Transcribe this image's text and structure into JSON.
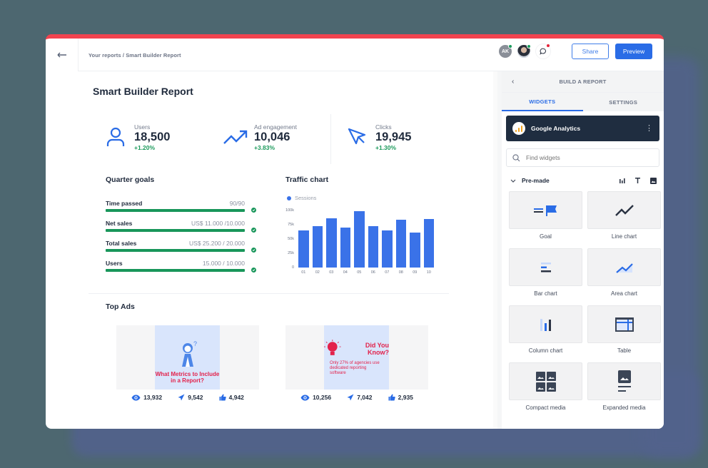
{
  "topbar": {
    "back_icon": "arrow-left-icon",
    "breadcrumb": "Your reports / Smart Builder Report",
    "avatars": [
      {
        "initials": "AK",
        "status_color": "#1b9a5b"
      },
      {
        "initials": "",
        "status_color": "#1b9a5b"
      }
    ],
    "chat_icon": "chat-bubble-icon",
    "share_label": "Share",
    "preview_label": "Preview"
  },
  "report": {
    "title": "Smart Builder Report",
    "kpis": [
      {
        "icon": "user-icon",
        "label": "Users",
        "value": "18,500",
        "delta": "+1.20%"
      },
      {
        "icon": "trending-up-icon",
        "label": "Ad engagement",
        "value": "10,046",
        "delta": "+3.83%"
      },
      {
        "icon": "cursor-icon",
        "label": "Clicks",
        "value": "19,945",
        "delta": "+1.30%"
      }
    ],
    "quarter_goals": {
      "title": "Quarter goals",
      "items": [
        {
          "label": "Time passed",
          "value": "90/90"
        },
        {
          "label": "Net sales",
          "value": "US$ 11.000 /10.000"
        },
        {
          "label": "Total sales",
          "value": "US$ 25.200 / 20.000"
        },
        {
          "label": "Users",
          "value": "15.000 / 10.000"
        }
      ]
    },
    "traffic_chart": {
      "title": "Traffic chart",
      "legend": "Sessions",
      "y_ticks": [
        "100k",
        "75k",
        "50k",
        "25k",
        "0"
      ],
      "categories": [
        "01",
        "02",
        "03",
        "04",
        "05",
        "06",
        "07",
        "08",
        "09",
        "10"
      ],
      "values": [
        65,
        72,
        86,
        70,
        99,
        72,
        65,
        84,
        61,
        85
      ],
      "color": "#3a72e8"
    },
    "top_ads": {
      "title": "Top Ads",
      "ads": [
        {
          "creative_text": "What Metrics to Include in a Report?",
          "views": "13,932",
          "clicks": "9,542",
          "likes": "4,942"
        },
        {
          "creative_title": "Did You Know?",
          "creative_text": "Only 27% of agencies use dedicated reporting software",
          "views": "10,256",
          "clicks": "7,042",
          "likes": "2,935"
        }
      ]
    }
  },
  "panel": {
    "title": "BUILD A REPORT",
    "tabs": [
      {
        "label": "WIDGETS",
        "active": true
      },
      {
        "label": "SETTINGS",
        "active": false
      }
    ],
    "source": {
      "name": "Google Analytics",
      "icon": "google-analytics-icon"
    },
    "search": {
      "placeholder": "Find widgets",
      "value": ""
    },
    "section": {
      "label": "Pre-made",
      "tools": [
        "chart-icon",
        "text-icon",
        "image-icon"
      ]
    },
    "widgets": [
      {
        "label": "Goal",
        "icon": "goal-icon"
      },
      {
        "label": "Line chart",
        "icon": "line-chart-icon"
      },
      {
        "label": "Bar chart",
        "icon": "bar-chart-icon"
      },
      {
        "label": "Area chart",
        "icon": "area-chart-icon"
      },
      {
        "label": "Column chart",
        "icon": "column-chart-icon"
      },
      {
        "label": "Table",
        "icon": "table-icon"
      },
      {
        "label": "Compact media",
        "icon": "compact-media-icon"
      },
      {
        "label": "Expanded media",
        "icon": "expanded-media-icon"
      }
    ]
  },
  "colors": {
    "accent": "#2a6ce6",
    "success": "#18965a",
    "top_border": "#f2434f",
    "panel_dark": "#1f2d40"
  }
}
